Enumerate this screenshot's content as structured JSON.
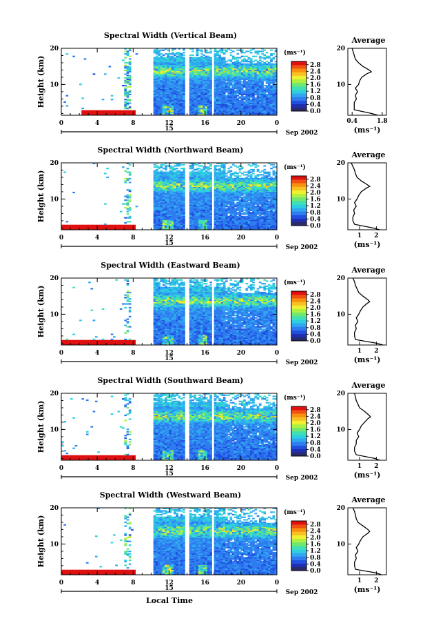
{
  "chart_data": [
    {
      "type": "heatmap",
      "title": "Spectral Width (Vertical Beam)",
      "ylabel": "Height (km)",
      "xticks": [
        "0",
        "4",
        "8",
        "12",
        "16",
        "20",
        "0"
      ],
      "yticks": [
        "20",
        "10"
      ],
      "day_label": "15",
      "date_label": "Sep 2002",
      "xlim": [
        0,
        24
      ],
      "ylim": [
        1.5,
        20
      ],
      "colorbar": {
        "unit": "(ms⁻¹)",
        "ticks": [
          "2.8",
          "2.4",
          "2.0",
          "1.6",
          "1.2",
          "0.8",
          "0.4",
          "0.0"
        ],
        "range": [
          0,
          3.0
        ]
      },
      "average": {
        "title": "Average",
        "xlabel": "(ms⁻¹)",
        "xticks": [
          "0.4",
          "1.8"
        ],
        "yticks": [
          "20",
          "10"
        ],
        "xlim": [
          0.2,
          2.0
        ],
        "heights": [
          1.5,
          2,
          3,
          4,
          5,
          6,
          7,
          8,
          9,
          10,
          11,
          12,
          13,
          13.5,
          14,
          15,
          16,
          17,
          18,
          19,
          20
        ],
        "values": [
          1.6,
          1.3,
          0.5,
          0.5,
          0.5,
          0.6,
          0.55,
          0.65,
          0.55,
          0.7,
          0.75,
          0.85,
          1.1,
          1.3,
          1.2,
          0.9,
          0.7,
          0.55,
          0.5,
          0.45,
          0.4
        ]
      }
    },
    {
      "type": "heatmap",
      "title": "Spectral Width (Northward Beam)",
      "ylabel": "Height (km)",
      "xticks": [
        "0",
        "4",
        "8",
        "12",
        "16",
        "20",
        "0"
      ],
      "yticks": [
        "20",
        "10"
      ],
      "day_label": "15",
      "date_label": "Sep 2002",
      "xlim": [
        0,
        24
      ],
      "ylim": [
        1.5,
        20
      ],
      "colorbar": {
        "unit": "(ms⁻¹)",
        "ticks": [
          "2.8",
          "2.4",
          "2.0",
          "1.6",
          "1.2",
          "0.8",
          "0.4",
          "0.0"
        ],
        "range": [
          0,
          3.0
        ]
      },
      "average": {
        "title": "Average",
        "xlabel": "(ms⁻¹)",
        "xticks": [
          "1",
          "2"
        ],
        "yticks": [
          "20",
          "10"
        ],
        "xlim": [
          0.3,
          2.6
        ],
        "heights": [
          1.5,
          2,
          3,
          4,
          5,
          6,
          7,
          8,
          9,
          10,
          11,
          12,
          13,
          13.5,
          14,
          15,
          16,
          17,
          18,
          19,
          20
        ],
        "values": [
          2.2,
          1.8,
          0.7,
          0.6,
          0.6,
          0.7,
          0.65,
          0.8,
          0.7,
          0.85,
          0.95,
          1.1,
          1.4,
          1.6,
          1.45,
          1.1,
          0.85,
          0.75,
          0.7,
          0.6,
          0.5
        ]
      }
    },
    {
      "type": "heatmap",
      "title": "Spectral Width (Eastward Beam)",
      "ylabel": "Height (km)",
      "xticks": [
        "0",
        "4",
        "8",
        "12",
        "16",
        "20",
        "0"
      ],
      "yticks": [
        "20",
        "10"
      ],
      "day_label": "15",
      "date_label": "Sep 2002",
      "xlim": [
        0,
        24
      ],
      "ylim": [
        1.5,
        20
      ],
      "colorbar": {
        "unit": "(ms⁻¹)",
        "ticks": [
          "2.8",
          "2.4",
          "2.0",
          "1.6",
          "1.2",
          "0.8",
          "0.4",
          "0.0"
        ],
        "range": [
          0,
          3.0
        ]
      },
      "average": {
        "title": "Average",
        "xlabel": "(ms⁻¹)",
        "xticks": [
          "1",
          "2"
        ],
        "yticks": [
          "20",
          "10"
        ],
        "xlim": [
          0.3,
          2.6
        ],
        "heights": [
          1.5,
          2,
          3,
          4,
          5,
          6,
          7,
          8,
          9,
          10,
          11,
          12,
          13,
          13.5,
          14,
          15,
          16,
          17,
          18,
          19,
          20
        ],
        "values": [
          2.4,
          2.0,
          0.75,
          0.7,
          0.7,
          0.8,
          0.75,
          0.9,
          0.8,
          0.95,
          1.05,
          1.2,
          1.45,
          1.6,
          1.5,
          1.2,
          0.95,
          0.85,
          0.75,
          0.7,
          0.6
        ]
      }
    },
    {
      "type": "heatmap",
      "title": "Spectral Width (Southward Beam)",
      "ylabel": "Height (km)",
      "xticks": [
        "0",
        "4",
        "8",
        "12",
        "16",
        "20",
        "0"
      ],
      "yticks": [
        "20",
        "10"
      ],
      "day_label": "15",
      "date_label": "Sep 2002",
      "xlim": [
        0,
        24
      ],
      "ylim": [
        1.5,
        20
      ],
      "colorbar": {
        "unit": "(ms⁻¹)",
        "ticks": [
          "2.8",
          "2.4",
          "2.0",
          "1.6",
          "1.2",
          "0.8",
          "0.4",
          "0.0"
        ],
        "range": [
          0,
          3.0
        ]
      },
      "average": {
        "title": "Average",
        "xlabel": "(ms⁻¹)",
        "xticks": [
          "1",
          "2"
        ],
        "yticks": [
          "20",
          "10"
        ],
        "xlim": [
          0.3,
          2.6
        ],
        "heights": [
          1.5,
          2,
          3,
          4,
          5,
          6,
          7,
          8,
          9,
          10,
          11,
          12,
          13,
          13.5,
          14,
          15,
          16,
          17,
          18,
          19,
          20
        ],
        "values": [
          2.2,
          1.9,
          0.8,
          0.7,
          0.7,
          0.8,
          0.8,
          0.95,
          0.85,
          1.0,
          1.1,
          1.3,
          1.5,
          1.65,
          1.55,
          1.3,
          1.0,
          0.9,
          0.8,
          0.75,
          0.7
        ]
      }
    },
    {
      "type": "heatmap",
      "title": "Spectral Width (Westward Beam)",
      "ylabel": "Height (km)",
      "xticks": [
        "0",
        "4",
        "8",
        "12",
        "16",
        "20",
        "0"
      ],
      "yticks": [
        "20",
        "10"
      ],
      "day_label": "15",
      "date_label": "Sep 2002",
      "xlabel": "Local Time",
      "xlim": [
        0,
        24
      ],
      "ylim": [
        1.5,
        20
      ],
      "colorbar": {
        "unit": "(ms⁻¹)",
        "ticks": [
          "2.8",
          "2.4",
          "2.0",
          "1.6",
          "1.2",
          "0.8",
          "0.4",
          "0.0"
        ],
        "range": [
          0,
          3.0
        ]
      },
      "average": {
        "title": "Average",
        "xlabel": "(ms⁻¹)",
        "xticks": [
          "1",
          "2"
        ],
        "yticks": [
          "20",
          "10"
        ],
        "xlim": [
          0.3,
          2.6
        ],
        "heights": [
          1.5,
          2,
          3,
          4,
          5,
          6,
          7,
          8,
          9,
          10,
          11,
          12,
          13,
          13.5,
          14,
          15,
          16,
          17,
          18,
          19,
          20
        ],
        "values": [
          2.3,
          2.0,
          0.75,
          0.7,
          0.7,
          0.8,
          0.75,
          0.9,
          0.8,
          0.95,
          1.05,
          1.2,
          1.5,
          1.6,
          1.5,
          1.2,
          0.9,
          0.8,
          0.75,
          0.7,
          0.6
        ]
      }
    }
  ]
}
